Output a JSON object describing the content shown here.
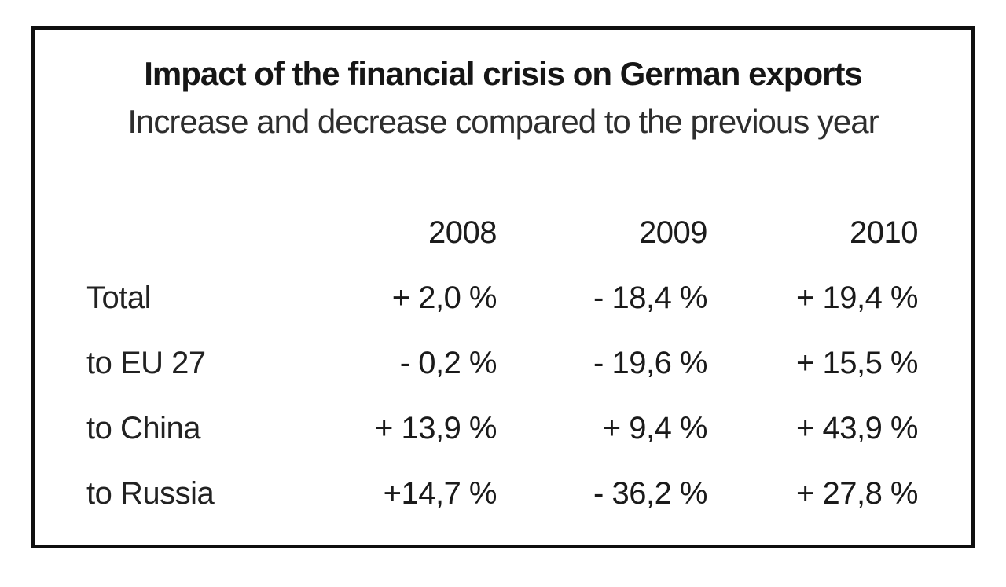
{
  "page": {
    "background_color": "#ffffff",
    "frame_border_color": "#0f0f0f",
    "text_color": "#1a1a1a"
  },
  "chart_data": {
    "type": "table",
    "title": "Impact of the financial crisis on German exports",
    "subtitle": "Increase and decrease compared to the previous year",
    "unit": "%",
    "columns": [
      "",
      "2008",
      "2009",
      "2010"
    ],
    "rows": [
      {
        "label": "Total",
        "values": [
          "+ 2,0 %",
          "- 18,4 %",
          "+ 19,4 %"
        ]
      },
      {
        "label": "to EU 27",
        "values": [
          "- 0,2 %",
          "- 19,6 %",
          "+ 15,5 %"
        ]
      },
      {
        "label": "to China",
        "values": [
          "+ 13,9 %",
          "+ 9,4 %",
          "+ 43,9 %"
        ]
      },
      {
        "label": "to Russia",
        "values": [
          "+14,7 %",
          "- 36,2 %",
          "+ 27,8 %"
        ]
      }
    ],
    "series": [
      {
        "name": "Total",
        "values": [
          2.0,
          -18.4,
          19.4
        ]
      },
      {
        "name": "to EU 27",
        "values": [
          -0.2,
          -19.6,
          15.5
        ]
      },
      {
        "name": "to China",
        "values": [
          13.9,
          9.4,
          43.9
        ]
      },
      {
        "name": "to Russia",
        "values": [
          14.7,
          -36.2,
          27.8
        ]
      }
    ],
    "x": [
      2008,
      2009,
      2010
    ],
    "layout": {
      "grid": false,
      "legend": false,
      "value_alignment": "right",
      "decimal_separator": ","
    }
  }
}
